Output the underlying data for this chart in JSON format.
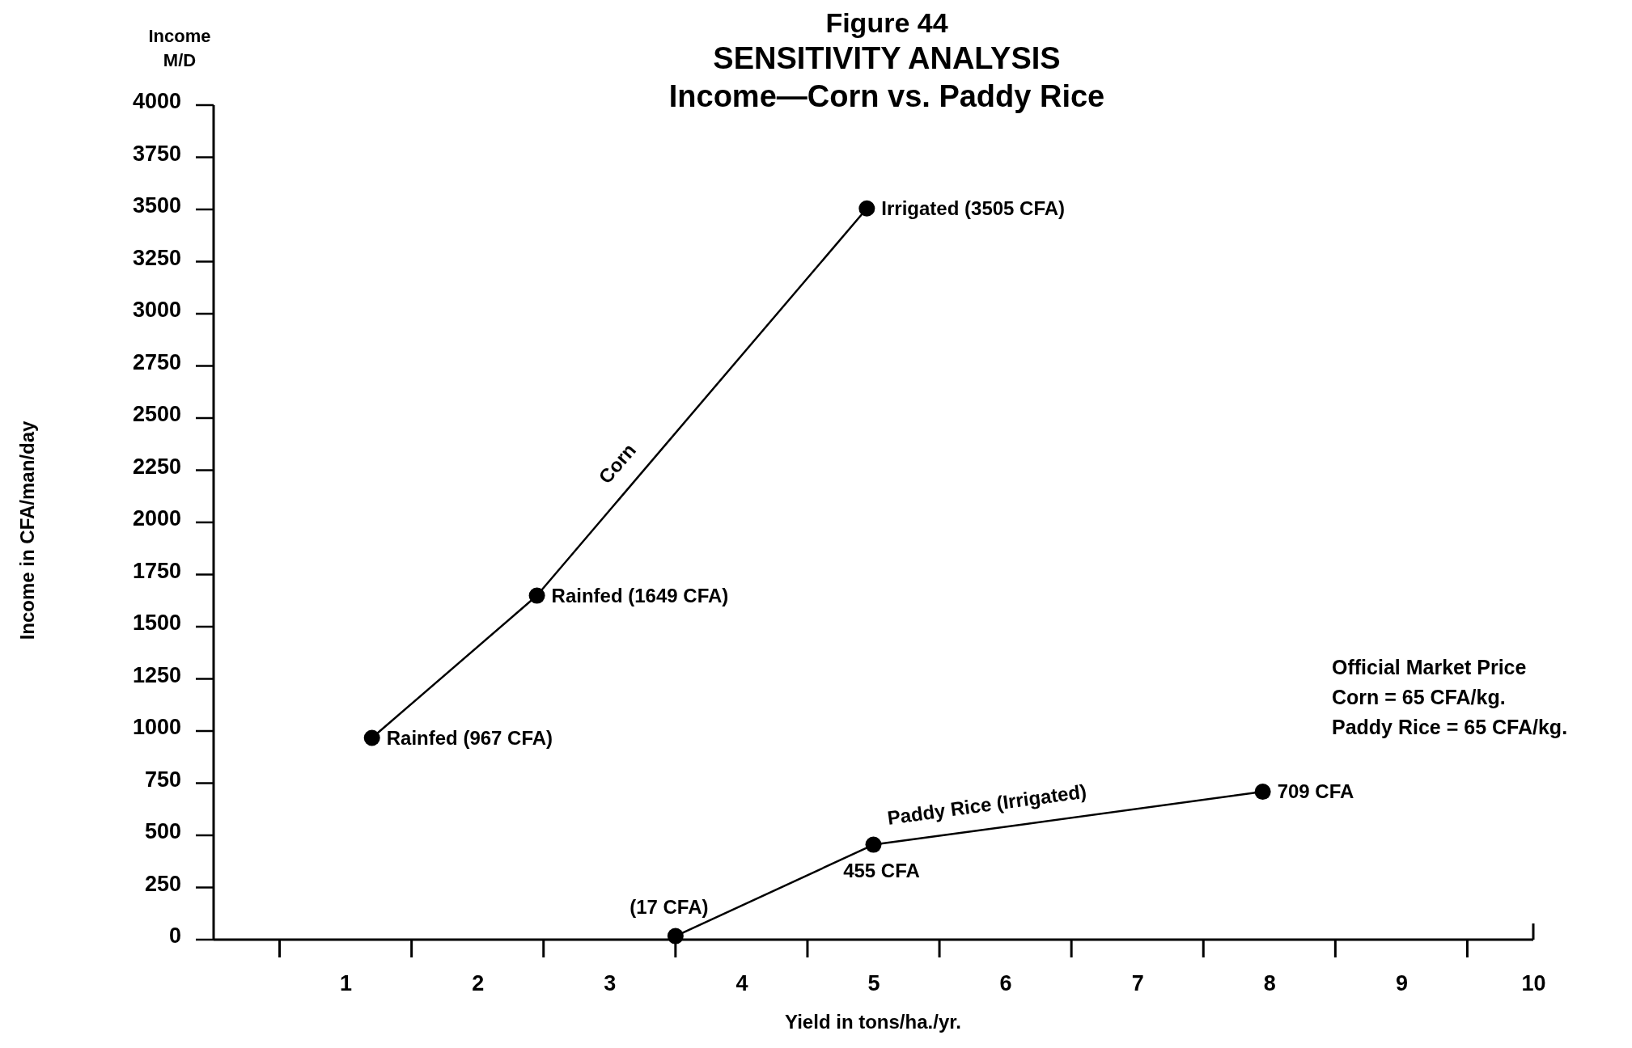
{
  "chart_data": {
    "type": "line",
    "title": "SENSITIVITY ANALYSIS",
    "subtitle": "Income—Corn vs. Paddy Rice",
    "xlabel": "Yield in tons/ha./yr.",
    "ylabel": "Income in CFA/man/day",
    "annotations": [
      "Figure 44",
      "Income M/D",
      "Official Market Price",
      "Corn = 65 CFA/kg.",
      "Paddy Rice = 65 CFA/kg."
    ],
    "xlim": [
      0,
      10
    ],
    "xticks": [
      1,
      2,
      3,
      4,
      5,
      6,
      7,
      8,
      9,
      10
    ],
    "ylim": [
      0,
      4000
    ],
    "yticks": [
      0,
      250,
      500,
      750,
      1000,
      1250,
      1500,
      1750,
      2000,
      2250,
      2500,
      2750,
      3000,
      3250,
      3500,
      3750,
      4000
    ],
    "grid": false,
    "marker": "circle",
    "line_style": "solid",
    "series": [
      {
        "name": "Corn",
        "color": "#000000",
        "x": [
          1.2,
          2.45,
          4.95
        ],
        "values": [
          967,
          1649,
          3505
        ],
        "value_labels": [
          "Rainfed (967 CFA)",
          "Rainfed (1649 CFA)",
          "Irrigated (3505 CFA)"
        ]
      },
      {
        "name": "Paddy Rice (Irrigated)",
        "color": "#000000",
        "x": [
          3.5,
          5,
          7.95
        ],
        "values": [
          17,
          455,
          709
        ],
        "value_labels": [
          "(17 CFA)",
          "455 CFA",
          "709 CFA"
        ]
      }
    ]
  }
}
